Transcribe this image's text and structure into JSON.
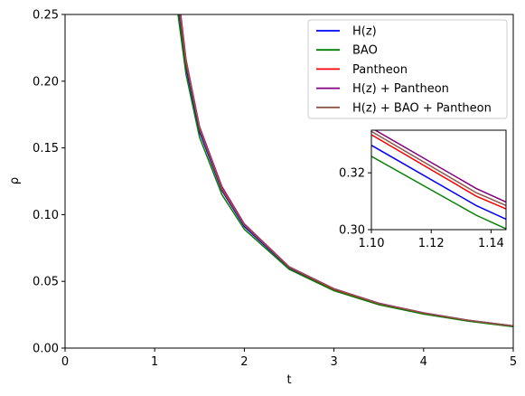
{
  "chart_data": {
    "type": "line",
    "xlabel": "t",
    "ylabel": "ρ",
    "xlim": [
      0,
      5
    ],
    "ylim": [
      0,
      0.25
    ],
    "x_ticks": [
      "0",
      "1",
      "2",
      "3",
      "4",
      "5"
    ],
    "y_ticks": [
      "0.00",
      "0.05",
      "0.10",
      "0.15",
      "0.20",
      "0.25"
    ],
    "grid": false,
    "legend_position": "top-right",
    "series": [
      {
        "name": "H(z)",
        "color": "#0000ff",
        "x": [
          1.27,
          1.35,
          1.5,
          1.75,
          2.0,
          2.5,
          3.0,
          3.5,
          4.0,
          4.5,
          5.0
        ],
        "y": [
          0.25,
          0.21,
          0.162,
          0.118,
          0.091,
          0.06,
          0.0435,
          0.033,
          0.026,
          0.0205,
          0.0163
        ]
      },
      {
        "name": "BAO",
        "color": "#008000",
        "x": [
          1.26,
          1.35,
          1.5,
          1.75,
          2.0,
          2.5,
          3.0,
          3.5,
          4.0,
          4.5,
          5.0
        ],
        "y": [
          0.25,
          0.205,
          0.158,
          0.115,
          0.089,
          0.059,
          0.043,
          0.0325,
          0.0255,
          0.0202,
          0.016
        ]
      },
      {
        "name": "Pantheon",
        "color": "#ff0000",
        "x": [
          1.28,
          1.35,
          1.5,
          1.75,
          2.0,
          2.5,
          3.0,
          3.5,
          4.0,
          4.5,
          5.0
        ],
        "y": [
          0.25,
          0.213,
          0.164,
          0.119,
          0.092,
          0.0605,
          0.044,
          0.0333,
          0.0262,
          0.0207,
          0.0165
        ]
      },
      {
        "name": "H(z) + Pantheon",
        "color": "#800080",
        "x": [
          1.29,
          1.35,
          1.5,
          1.75,
          2.0,
          2.5,
          3.0,
          3.5,
          4.0,
          4.5,
          5.0
        ],
        "y": [
          0.25,
          0.216,
          0.166,
          0.121,
          0.093,
          0.061,
          0.0445,
          0.0336,
          0.0264,
          0.0209,
          0.0167
        ]
      },
      {
        "name": "H(z) + BAO + Pantheon",
        "color": "#8c564b",
        "x": [
          1.285,
          1.35,
          1.5,
          1.75,
          2.0,
          2.5,
          3.0,
          3.5,
          4.0,
          4.5,
          5.0
        ],
        "y": [
          0.25,
          0.215,
          0.165,
          0.12,
          0.0925,
          0.0607,
          0.0443,
          0.0334,
          0.0263,
          0.0208,
          0.0166
        ]
      }
    ],
    "inset": {
      "xlim": [
        1.1,
        1.145
      ],
      "ylim": [
        0.3,
        0.335
      ],
      "x_ticks": [
        "1.10",
        "1.12",
        "1.14"
      ],
      "y_ticks": [
        "0.30",
        "0.32"
      ],
      "series": [
        {
          "name": "H(z)",
          "color": "#0000ff",
          "x": [
            1.1,
            1.135,
            1.145
          ],
          "y": [
            0.3297,
            0.3085,
            0.3037
          ]
        },
        {
          "name": "BAO",
          "color": "#008000",
          "x": [
            1.1,
            1.135,
            1.145
          ],
          "y": [
            0.3258,
            0.3051,
            0.3003
          ]
        },
        {
          "name": "Pantheon",
          "color": "#ff0000",
          "x": [
            1.1,
            1.135,
            1.145
          ],
          "y": [
            0.3334,
            0.3118,
            0.3073
          ]
        },
        {
          "name": "H(z) + BAO + Pantheon",
          "color": "#8c564b",
          "x": [
            1.1,
            1.135,
            1.145
          ],
          "y": [
            0.3346,
            0.313,
            0.3085
          ]
        },
        {
          "name": "H(z) + Pantheon",
          "color": "#800080",
          "x": [
            1.1,
            1.135,
            1.145
          ],
          "y": [
            0.3358,
            0.3145,
            0.3097
          ]
        }
      ]
    }
  }
}
